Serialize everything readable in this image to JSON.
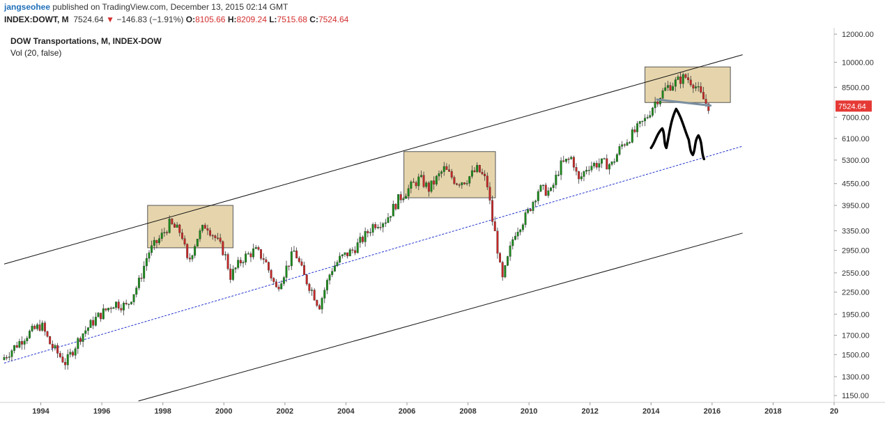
{
  "header": {
    "author": "jangseohee",
    "published_text": "published on TradingView.com, December 13, 2015 02:14 GMT",
    "symbol": "INDEX:DOWT, M",
    "last": "7524.64",
    "change_arrow": "▼",
    "change": "−146.83 (−1.91%)",
    "open_label": "O:",
    "open": "8105.66",
    "high_label": "H:",
    "high": "8209.24",
    "low_label": "L:",
    "low": "7515.68",
    "close_label": "C:",
    "close": "7524.64"
  },
  "legend": {
    "title": "DOW Transportations, M, INDEX-DOW",
    "volume": "Vol (20, false)"
  },
  "colors": {
    "up": "#1b8a1b",
    "down": "#c62828",
    "box_fill": "#d9bf80",
    "box_stroke": "#555555",
    "channel": "#111111",
    "midline": "#2233cc",
    "price_tag": "#e53935",
    "annotation": "#000000",
    "neckline": "#7a8ea0"
  },
  "chart_data": {
    "type": "candlestick",
    "title": "DOW Transportations, M, INDEX-DOW",
    "scale": "log",
    "ylim": [
      1100,
      12500
    ],
    "xlim": [
      1992.8,
      2020.0
    ],
    "y_ticks": [
      "12000.00",
      "10000.00",
      "8500.00",
      "7000.00",
      "6100.00",
      "5300.00",
      "4550.00",
      "3950.00",
      "3350.00",
      "2950.00",
      "2550.00",
      "2250.00",
      "1950.00",
      "1700.00",
      "1500.00",
      "1300.00",
      "1150.00"
    ],
    "x_ticks": [
      "1994",
      "1996",
      "1998",
      "2000",
      "2002",
      "2004",
      "2006",
      "2008",
      "2010",
      "2012",
      "2014",
      "2016",
      "2018",
      "20"
    ],
    "last_price_tag": "7524.64",
    "trend_channel": {
      "upper": [
        [
          1992.8,
          2700
        ],
        [
          2017.0,
          10500
        ]
      ],
      "middle": [
        [
          1992.8,
          1420
        ],
        [
          2017.0,
          5800
        ]
      ],
      "lower": [
        [
          1997.2,
          1110
        ],
        [
          2017.0,
          3300
        ]
      ]
    },
    "highlight_boxes": [
      {
        "x": [
          1997.5,
          2000.3
        ],
        "y": [
          3000,
          3950
        ]
      },
      {
        "x": [
          2005.9,
          2008.9
        ],
        "y": [
          4150,
          5600
        ]
      },
      {
        "x": [
          2013.8,
          2016.6
        ],
        "y": [
          7700,
          9700
        ]
      }
    ],
    "neckline": [
      [
        2014.2,
        7850
      ],
      [
        2015.95,
        7550
      ]
    ],
    "anchors": [
      [
        1992.8,
        1450
      ],
      [
        1993.6,
        1700
      ],
      [
        1994.1,
        1820
      ],
      [
        1994.4,
        1600
      ],
      [
        1994.9,
        1420
      ],
      [
        1995.4,
        1700
      ],
      [
        1995.9,
        1900
      ],
      [
        1996.5,
        2100
      ],
      [
        1996.9,
        2050
      ],
      [
        1997.3,
        2400
      ],
      [
        1997.6,
        2900
      ],
      [
        1998.0,
        3200
      ],
      [
        1998.3,
        3500
      ],
      [
        1998.7,
        3300
      ],
      [
        1998.9,
        2700
      ],
      [
        1999.2,
        3200
      ],
      [
        1999.5,
        3500
      ],
      [
        1999.8,
        3200
      ],
      [
        2000.1,
        2900
      ],
      [
        2000.3,
        2500
      ],
      [
        2000.7,
        2800
      ],
      [
        2001.1,
        2950
      ],
      [
        2001.4,
        2800
      ],
      [
        2001.8,
        2300
      ],
      [
        2002.1,
        2600
      ],
      [
        2002.4,
        2950
      ],
      [
        2002.7,
        2500
      ],
      [
        2003.0,
        2250
      ],
      [
        2003.2,
        2050
      ],
      [
        2003.6,
        2600
      ],
      [
        2003.9,
        2800
      ],
      [
        2004.3,
        2950
      ],
      [
        2004.6,
        3150
      ],
      [
        2005.0,
        3500
      ],
      [
        2005.4,
        3600
      ],
      [
        2005.8,
        4100
      ],
      [
        2006.2,
        4450
      ],
      [
        2006.5,
        4700
      ],
      [
        2006.8,
        4400
      ],
      [
        2007.3,
        5000
      ],
      [
        2007.7,
        4600
      ],
      [
        2008.0,
        4650
      ],
      [
        2008.4,
        5000
      ],
      [
        2008.7,
        4600
      ],
      [
        2008.9,
        3500
      ],
      [
        2009.0,
        3200
      ],
      [
        2009.2,
        2400
      ],
      [
        2009.6,
        3300
      ],
      [
        2010.0,
        3700
      ],
      [
        2010.4,
        4400
      ],
      [
        2010.8,
        4300
      ],
      [
        2011.1,
        5100
      ],
      [
        2011.5,
        5400
      ],
      [
        2011.7,
        4600
      ],
      [
        2012.0,
        5100
      ],
      [
        2012.4,
        5200
      ],
      [
        2012.8,
        5150
      ],
      [
        2013.1,
        5800
      ],
      [
        2013.5,
        6300
      ],
      [
        2013.9,
        6900
      ],
      [
        2014.2,
        7700
      ],
      [
        2014.6,
        8500
      ],
      [
        2014.9,
        8800
      ],
      [
        2015.2,
        9100
      ],
      [
        2015.5,
        8700
      ],
      [
        2015.7,
        8100
      ],
      [
        2015.95,
        7524
      ]
    ]
  }
}
